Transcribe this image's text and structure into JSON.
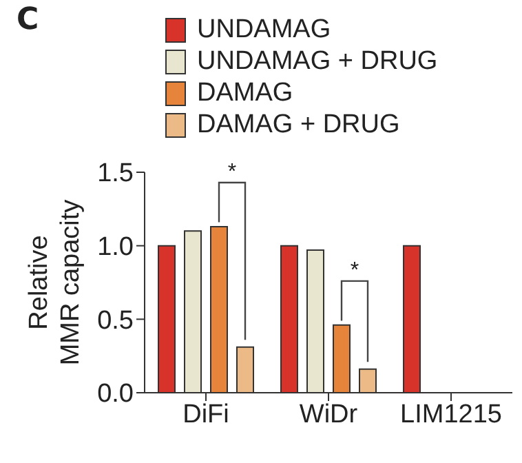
{
  "chart_data": {
    "type": "bar",
    "title": "C",
    "ylabel": "Relative MMR capacity",
    "categories": [
      "DiFi",
      "WiDr",
      "LIM1215"
    ],
    "series": [
      {
        "name": "UNDAMAG",
        "color": "#d8332a",
        "values": [
          1.0,
          1.0,
          1.0
        ]
      },
      {
        "name": "UNDAMAG + DRUG",
        "color": "#e8e6cf",
        "values": [
          1.1,
          0.97,
          null
        ]
      },
      {
        "name": "DAMAG",
        "color": "#e5843a",
        "values": [
          1.13,
          0.46,
          null
        ]
      },
      {
        "name": "DAMAG + DRUG",
        "color": "#ecba86",
        "values": [
          0.31,
          0.16,
          null
        ]
      }
    ],
    "ylim": [
      0,
      1.5
    ],
    "yticks": [
      {
        "value": 0,
        "label": "0.0"
      },
      {
        "value": 0.5,
        "label": "0.5"
      },
      {
        "value": 1,
        "label": "1.0"
      },
      {
        "value": 1.5,
        "label": "1.5"
      }
    ],
    "grid": false,
    "legend": "top",
    "annotations": [
      "*",
      "*"
    ]
  }
}
